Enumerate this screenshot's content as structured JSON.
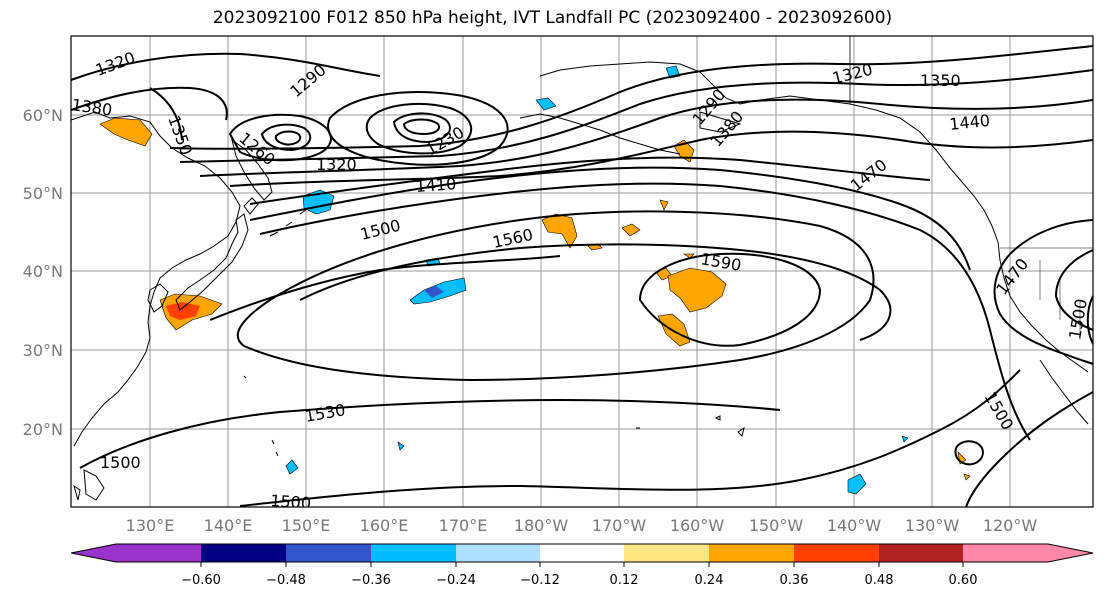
{
  "title": "2023092100 F012 850 hPa height, IVT Landfall PC (2023092400 - 2023092600)",
  "latitude_ticks": [
    "20°N",
    "30°N",
    "40°N",
    "50°N",
    "60°N"
  ],
  "longitude_ticks": [
    "130°E",
    "140°E",
    "150°E",
    "160°E",
    "170°E",
    "180°W",
    "170°W",
    "160°W",
    "150°W",
    "140°W",
    "130°W",
    "120°W"
  ],
  "contour_labels": [
    {
      "text": "1320"
    },
    {
      "text": "1290"
    },
    {
      "text": "1380"
    },
    {
      "text": "1350"
    },
    {
      "text": "1260"
    },
    {
      "text": "1320"
    },
    {
      "text": "1230"
    },
    {
      "text": "1410"
    },
    {
      "text": "1500"
    },
    {
      "text": "1560"
    },
    {
      "text": "1590"
    },
    {
      "text": "1530"
    },
    {
      "text": "1500"
    },
    {
      "text": "1500"
    },
    {
      "text": "1320"
    },
    {
      "text": "1350"
    },
    {
      "text": "1440"
    },
    {
      "text": "1470"
    },
    {
      "text": "1470"
    },
    {
      "text": "1500"
    },
    {
      "text": "1500"
    },
    {
      "text": "1290"
    },
    {
      "text": "1380"
    }
  ],
  "colorbar": {
    "ticks": [
      "−0.60",
      "−0.48",
      "−0.36",
      "−0.24",
      "−0.12",
      "0.12",
      "0.24",
      "0.36",
      "0.48",
      "0.60"
    ],
    "colors": [
      "#9933cc",
      "#000080",
      "#3355cc",
      "#00bfff",
      "#b0e0ff",
      "#ffffff",
      "#ffe680",
      "#ffa500",
      "#ff4000",
      "#b22222",
      "#ff88aa"
    ]
  }
}
